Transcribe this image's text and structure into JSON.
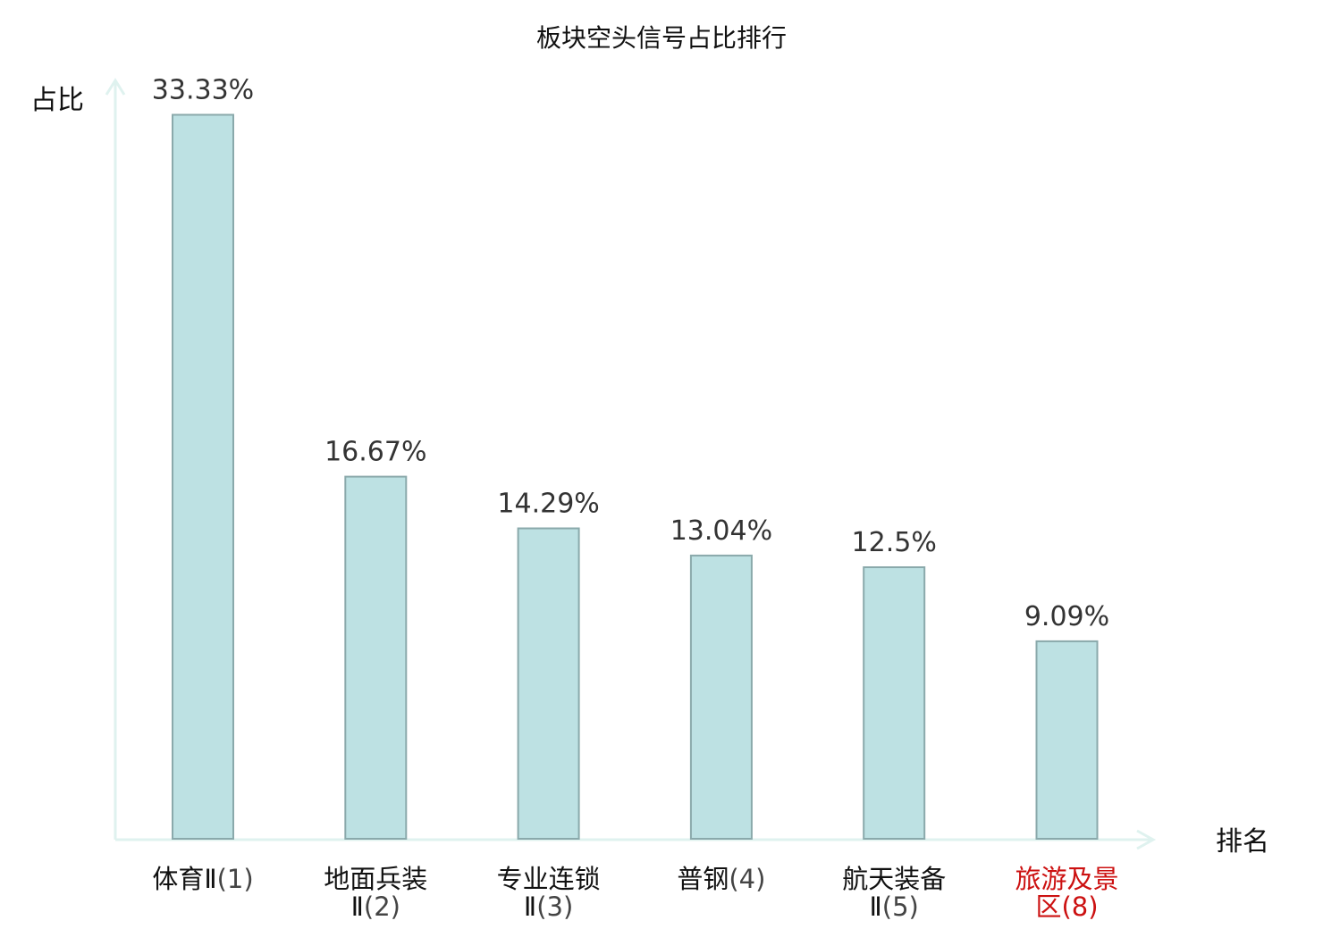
{
  "chart_data": {
    "type": "bar",
    "title": "板块空头信号占比排行",
    "ylabel": "占比",
    "xlabel": "排名",
    "ylim": [
      0,
      34.5
    ],
    "grid": false,
    "bar_color": "#bde1e3",
    "bar_border_color": "#8aa9ab",
    "axis_color": "#dff2ef",
    "highlight_color": "#cc1111",
    "categories": [
      {
        "name_lines": [
          "体育Ⅱ"
        ],
        "rank": "(1)",
        "value_label": "33.33%",
        "highlight": false
      },
      {
        "name_lines": [
          "地面兵装",
          "Ⅱ"
        ],
        "rank": "(2)",
        "value_label": "16.67%",
        "highlight": false
      },
      {
        "name_lines": [
          "专业连锁",
          "Ⅱ"
        ],
        "rank": "(3)",
        "value_label": "14.29%",
        "highlight": false
      },
      {
        "name_lines": [
          "普钢"
        ],
        "rank": "(4)",
        "value_label": "13.04%",
        "highlight": false
      },
      {
        "name_lines": [
          "航天装备",
          "Ⅱ"
        ],
        "rank": "(5)",
        "value_label": "12.5%",
        "highlight": false
      },
      {
        "name_lines": [
          "旅游及景",
          "区"
        ],
        "rank": "(8)",
        "value_label": "9.09%",
        "highlight": true
      }
    ],
    "values": [
      33.33,
      16.67,
      14.29,
      13.04,
      12.5,
      9.09
    ]
  }
}
